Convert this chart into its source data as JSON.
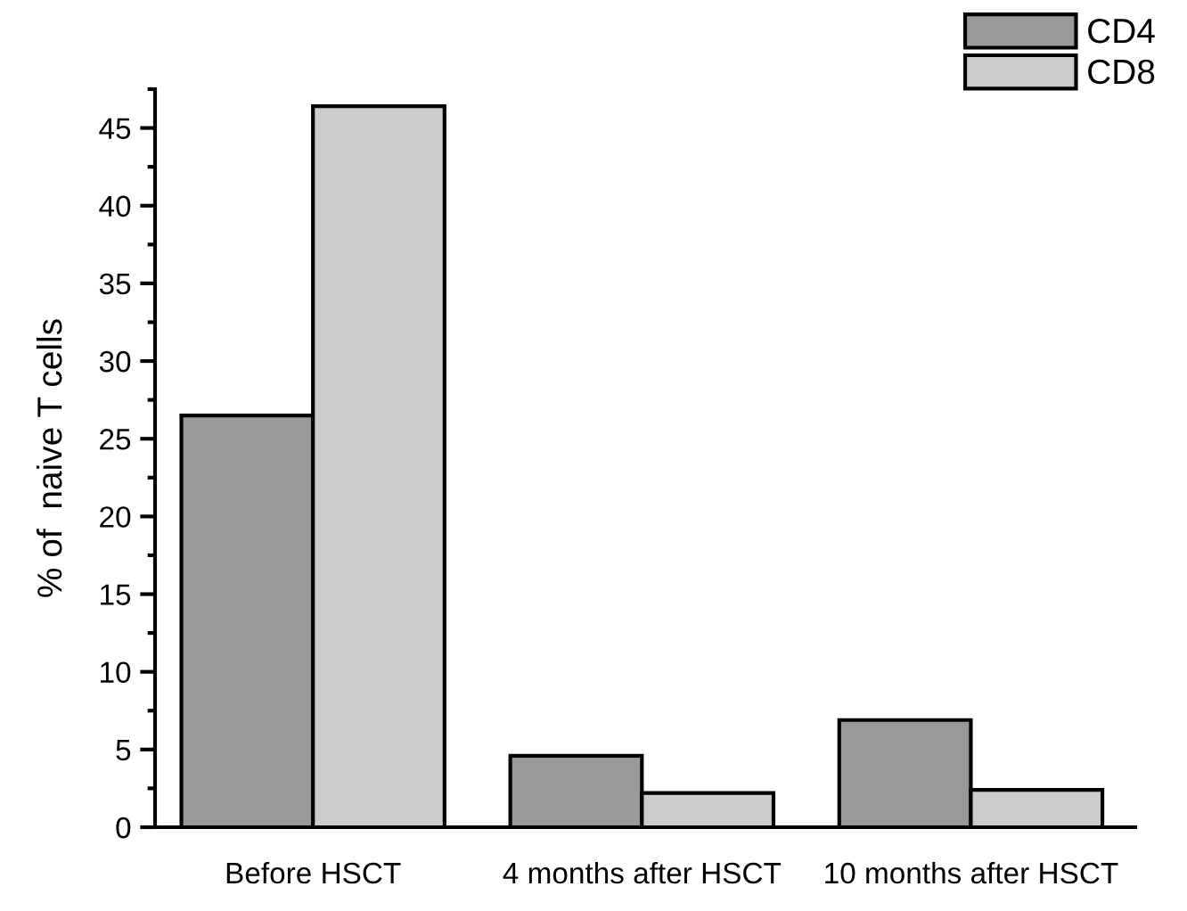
{
  "chart_data": {
    "type": "bar",
    "ylabel": "% of  naive T cells",
    "categories": [
      "Before HSCT",
      "4 months after HSCT",
      "10 months after HSCT"
    ],
    "series": [
      {
        "name": "CD4",
        "color": "#999999",
        "values": [
          26.5,
          4.6,
          6.9
        ]
      },
      {
        "name": "CD8",
        "color": "#cccccc",
        "values": [
          46.4,
          2.2,
          2.4
        ]
      }
    ],
    "ylim": [
      0,
      47.5
    ],
    "yticks": [
      0,
      5,
      10,
      15,
      20,
      25,
      30,
      35,
      40,
      45
    ],
    "grid": false,
    "legend": "top right"
  }
}
